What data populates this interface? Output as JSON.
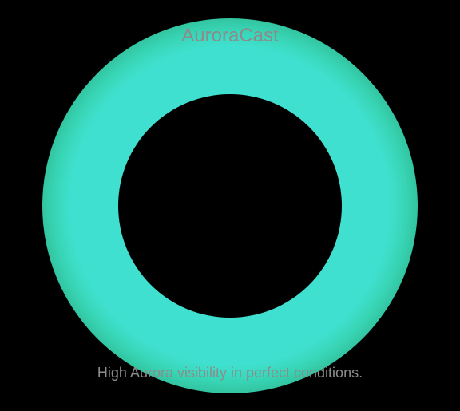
{
  "app": {
    "title": "AuroraCast"
  },
  "status": {
    "message": "High Aurora visibility in perfect conditions."
  },
  "colors": {
    "background": "#000000",
    "glow": "#40e0d0",
    "text": "#8c8c8c"
  }
}
